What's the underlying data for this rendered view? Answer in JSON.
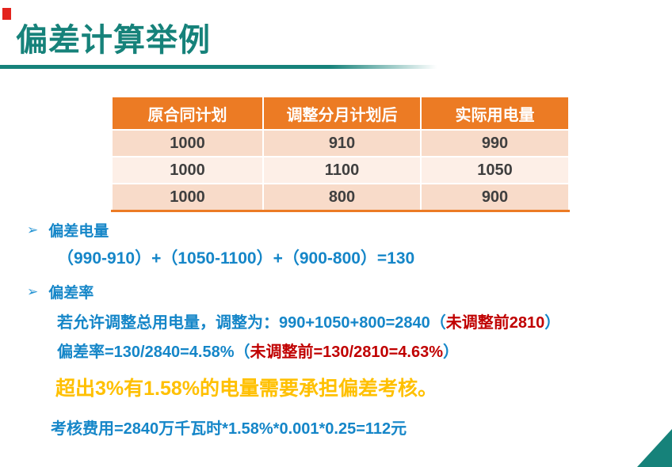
{
  "slide": {
    "title": "偏差计算举例"
  },
  "colors": {
    "title_teal": "#16827a",
    "accent_blue": "#1586c8",
    "marker_blue": "#2795d4",
    "accent_red": "#c00000",
    "gold": "#ffc000",
    "table_header_orange": "#ec7b24",
    "row_peach_dark": "#f8dbc9",
    "row_peach_light": "#fdefe7",
    "red_mark": "#e3231d"
  },
  "table": {
    "headers": [
      "原合同计划",
      "调整分月计划后",
      "实际用电量"
    ],
    "rows": [
      [
        "1000",
        "910",
        "990"
      ],
      [
        "1000",
        "1100",
        "1050"
      ],
      [
        "1000",
        "800",
        "900"
      ]
    ]
  },
  "bullets": {
    "marker": "➢",
    "bullet1_label": "偏差电量",
    "formula1": "（990-910）+（1050-1100）+（900-800）=130",
    "bullet2_label": "偏差率",
    "formula2_blue": "若允许调整总用电量，调整为：990+1050+800=2840（",
    "formula2_red": "未调整前2810",
    "formula2_close": "）",
    "formula3_blue": "偏差率=130/2840=4.58%（",
    "formula3_red": "未调整前=130/2810=4.63%",
    "formula3_close": "）",
    "highlight": "超出3%有1.58%的电量需要承担偏差考核。",
    "fee_line": "考核费用=2840万千瓦时*1.58%*0.001*0.25=112元"
  }
}
